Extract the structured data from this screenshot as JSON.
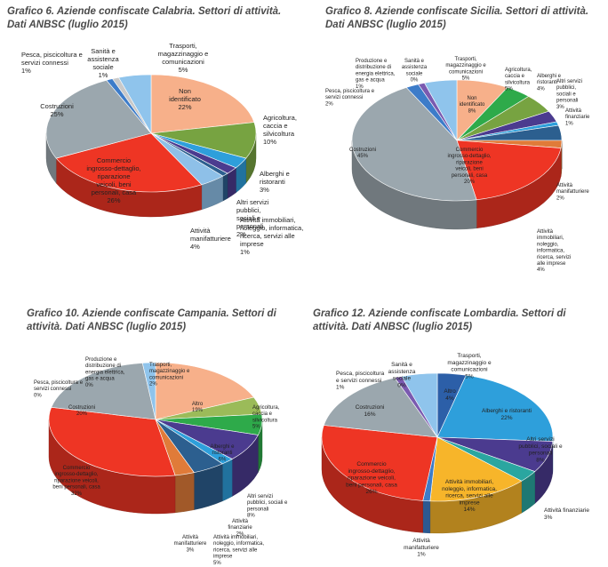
{
  "chart_data": [
    {
      "type": "pie",
      "title": "Grafico 6. Aziende confiscate Calabria. Settori di attività. Dati ANBSC (luglio 2015)",
      "slices": [
        {
          "label": "Non identificato",
          "value": 22,
          "pct": "22%",
          "color": "#f7b08a"
        },
        {
          "label": "Agricoltura, caccia e silvicoltura",
          "value": 10,
          "pct": "10%",
          "color": "#77a341"
        },
        {
          "label": "Alberghi e ristoranti",
          "value": 3,
          "pct": "3%",
          "color": "#2e9fdb"
        },
        {
          "label": "Altri servizi pubblici, sociali e personali",
          "value": 2,
          "pct": "2%",
          "color": "#4b3b8f"
        },
        {
          "label": "Attività immobiliari, noleggio, informatica, ricerca, servizi alle imprese",
          "value": 1,
          "pct": "1%",
          "color": "#2c5f8f"
        },
        {
          "label": "Attività manifatturiere",
          "value": 4,
          "pct": "4%",
          "color": "#8ec0e8"
        },
        {
          "label": "Commercio ingrosso-dettaglio, riparazione veicoli, beni personali, casa",
          "value": 26,
          "pct": "26%",
          "color": "#ee3524"
        },
        {
          "label": "Costruzioni",
          "value": 25,
          "pct": "25%",
          "color": "#9ba7ae"
        },
        {
          "label": "Pesca, piscicoltura e servizi connessi",
          "value": 1,
          "pct": "1%",
          "color": "#3d7cc9"
        },
        {
          "label": "Sanità e assistenza sociale",
          "value": 1,
          "pct": "1%",
          "color": "#c9c9c9"
        },
        {
          "label": "Trasporti, magazzinaggio e comunicazioni",
          "value": 5,
          "pct": "5%",
          "color": "#8fc4ec"
        }
      ]
    },
    {
      "type": "pie",
      "title": "Grafico 8. Aziende confiscate Sicilia. Settori di attività. Dati ANBSC (luglio 2015)",
      "slices": [
        {
          "label": "Non identificato",
          "value": 8,
          "pct": "8%",
          "color": "#f7b08a"
        },
        {
          "label": "Alberghi e ristoranti",
          "value": 4,
          "pct": "4%",
          "color": "#2eaa4a"
        },
        {
          "label": "Agricoltura, caccia e silvicoltura",
          "value": 5,
          "pct": "5%",
          "color": "#77a341"
        },
        {
          "label": "Altri servizi pubblici, sociali e personali",
          "value": 3,
          "pct": "3%",
          "color": "#4b3b8f"
        },
        {
          "label": "Attività finanziarie",
          "value": 1,
          "pct": "1%",
          "color": "#2e9fdb"
        },
        {
          "label": "Attività immobiliari, noleggio, informatica, ricerca, servizi alle imprese",
          "value": 4,
          "pct": "4%",
          "color": "#2c5f8f"
        },
        {
          "label": "Attività manifatturiere",
          "value": 2,
          "pct": "2%",
          "color": "#e07b39"
        },
        {
          "label": "Commercio ingrosso-dettaglio, riparazione veicoli, beni personali, casa",
          "value": 20,
          "pct": "20%",
          "color": "#ee3524"
        },
        {
          "label": "Costruzioni",
          "value": 45,
          "pct": "45%",
          "color": "#9ba7ae"
        },
        {
          "label": "Pesca, piscicoltura e servizi connessi",
          "value": 2,
          "pct": "2%",
          "color": "#3d7cc9"
        },
        {
          "label": "Produzione e distribuzione di energia elettrica, gas e acqua",
          "value": 1,
          "pct": "1%",
          "color": "#7a5ab0"
        },
        {
          "label": "Sanità e assistenza sociale",
          "value": 0,
          "pct": "0%",
          "color": "#c9c9c9"
        },
        {
          "label": "Trasporti, magazzinaggio e comunicazioni",
          "value": 5,
          "pct": "5%",
          "color": "#8fc4ec"
        }
      ]
    },
    {
      "type": "pie",
      "title": "Grafico 10. Aziende confiscate Campania. Settori di attività. Dati ANBSC (luglio 2015)",
      "slices": [
        {
          "label": "Altro",
          "value": 19,
          "pct": "19%",
          "color": "#f7b08a"
        },
        {
          "label": "Agricoltura, caccia e silvicoltura",
          "value": 5,
          "pct": "5%",
          "color": "#9bbb59"
        },
        {
          "label": "Alberghi e ristoranti",
          "value": 6,
          "pct": "6%",
          "color": "#2eaa4a"
        },
        {
          "label": "Altri servizi pubblici, sociali e personali",
          "value": 8,
          "pct": "8%",
          "color": "#4b3b8f"
        },
        {
          "label": "Attività finanziarie",
          "value": 2,
          "pct": "2%",
          "color": "#2e9fdb"
        },
        {
          "label": "Attività immobiliari, noleggio, informatica, ricerca, servizi alle imprese",
          "value": 5,
          "pct": "5%",
          "color": "#2c5f8f"
        },
        {
          "label": "Attività manifatturiere",
          "value": 3,
          "pct": "3%",
          "color": "#e07b39"
        },
        {
          "label": "Commercio ingrosso-dettaglio, riparazione veicoli, beni personali, casa",
          "value": 32,
          "pct": "32%",
          "color": "#ee3524"
        },
        {
          "label": "Costruzioni",
          "value": 20,
          "pct": "20%",
          "color": "#9ba7ae"
        },
        {
          "label": "Pesca, piscicoltura e servizi connessi",
          "value": 0,
          "pct": "0%",
          "color": "#3d7cc9"
        },
        {
          "label": "Produzione e distribuzione di energia elettrica, gas e acqua",
          "value": 0,
          "pct": "0%",
          "color": "#7a5ab0"
        },
        {
          "label": "Trasporti, magazzinaggio e comunicazioni",
          "value": 2,
          "pct": "2%",
          "color": "#8fc4ec"
        }
      ]
    },
    {
      "type": "pie",
      "title": "Grafico 12. Aziende confiscate Lombardia. Settori di attività. Dati ANBSC (luglio 2015)",
      "slices": [
        {
          "label": "Altro",
          "value": 4,
          "pct": "4%",
          "color": "#2c5fa8"
        },
        {
          "label": "Alberghi e ristoranti",
          "value": 22,
          "pct": "22%",
          "color": "#2e9fdb"
        },
        {
          "label": "Altri servizi pubblici, sociali e personali",
          "value": 8,
          "pct": "8%",
          "color": "#4b3b8f"
        },
        {
          "label": "Attività finanziarie",
          "value": 3,
          "pct": "3%",
          "color": "#2aa6a0"
        },
        {
          "label": "Attività immobiliari, noleggio, informatica, ricerca, servizi alle imprese",
          "value": 14,
          "pct": "14%",
          "color": "#f7b52a"
        },
        {
          "label": "Attività manifatturiere",
          "value": 1,
          "pct": "1%",
          "color": "#3d7cc9"
        },
        {
          "label": "Commercio ingrosso-dettaglio, riparazione veicoli, beni personali, casa",
          "value": 26,
          "pct": "26%",
          "color": "#ee3524"
        },
        {
          "label": "Costruzioni",
          "value": 16,
          "pct": "16%",
          "color": "#9ba7ae"
        },
        {
          "label": "Pesca, piscicoltura e servizi connessi",
          "value": 1,
          "pct": "1%",
          "color": "#7a5ab0"
        },
        {
          "label": "Sanità e assistenza sociale",
          "value": 0,
          "pct": "0%",
          "color": "#c9c9c9"
        },
        {
          "label": "Trasporti, magazzinaggio e comunicazioni",
          "value": 5,
          "pct": "5%",
          "color": "#8fc4ec"
        }
      ]
    }
  ]
}
